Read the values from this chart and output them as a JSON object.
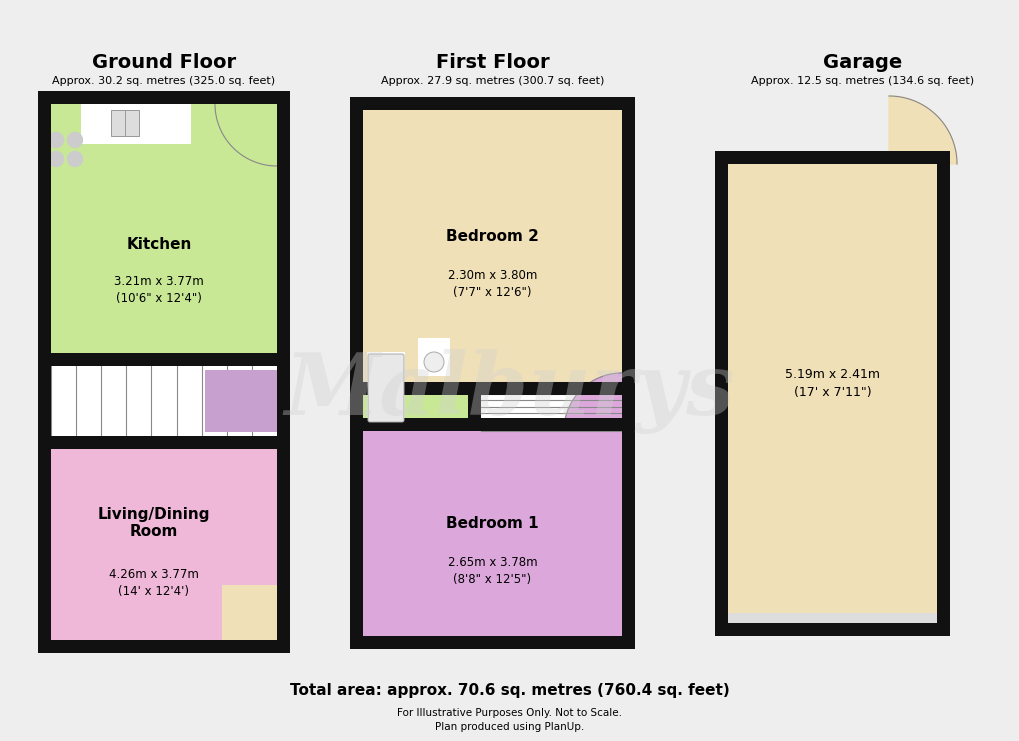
{
  "bg_color": "#eeeeee",
  "wall_color": "#111111",
  "wt": 0.13,
  "ground_floor_title": "Ground Floor",
  "ground_floor_subtitle": "Approx. 30.2 sq. metres (325.0 sq. feet)",
  "first_floor_title": "First Floor",
  "first_floor_subtitle": "Approx. 27.9 sq. metres (300.7 sq. feet)",
  "garage_title": "Garage",
  "garage_subtitle": "Approx. 12.5 sq. metres (134.6 sq. feet)",
  "total_area": "Total area: approx. 70.6 sq. metres (760.4 sq. feet)",
  "disclaimer1": "For Illustrative Purposes Only. Not to Scale.",
  "disclaimer2": "Plan produced using PlanUp.",
  "kitchen_label": "Kitchen",
  "kitchen_dims": "3.21m x 3.77m\n(10'6\" x 12'4\")",
  "kitchen_color": "#c8e896",
  "living_label": "Living/Dining\nRoom",
  "living_dims": "4.26m x 3.77m\n(14' x 12'4')",
  "living_color": "#f0b8d8",
  "hallway_color": "#c8e896",
  "stair_color": "#ffffff",
  "purple_color": "#c8a0d0",
  "beige_color": "#f0e0b8",
  "bedroom2_label": "Bedroom 2",
  "bedroom2_dims": "2.30m x 3.80m\n(7'7\" x 12'6\")",
  "bedroom2_color": "#f0e0b8",
  "bedroom1_label": "Bedroom 1",
  "bedroom1_dims": "2.65m x 3.78m\n(8'8\" x 12'5\")",
  "bedroom1_color": "#dca8dc",
  "bathroom_color": "#c8e896",
  "garage_color": "#f0e0b8",
  "garage_dims": "5.19m x 2.41m\n(17' x 7'11\")",
  "watermark": "Malburys",
  "watermark_color": "#d0d0d0"
}
